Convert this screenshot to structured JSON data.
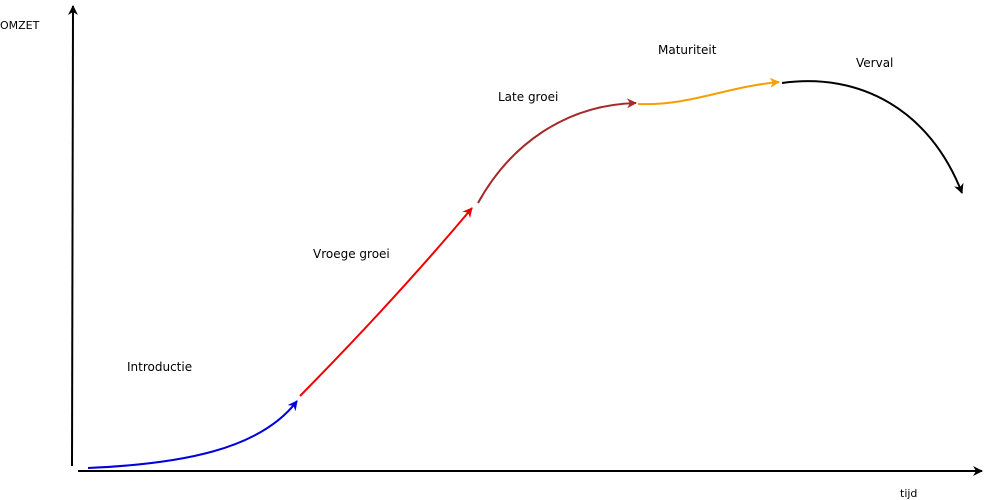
{
  "axes": {
    "y_label": "OMZET",
    "x_label": "tijd",
    "color": "#000000"
  },
  "phases": [
    {
      "id": "introductie",
      "label": "Introductie",
      "color": "#0000dd"
    },
    {
      "id": "vroege-groei",
      "label": "Vroege groei",
      "color": "#ee0000"
    },
    {
      "id": "late-groei",
      "label": "Late groei",
      "color": "#a52a2a"
    },
    {
      "id": "maturiteit",
      "label": "Maturiteit",
      "color": "#f5a000"
    },
    {
      "id": "verval",
      "label": "Verval",
      "color": "#000000"
    }
  ]
}
